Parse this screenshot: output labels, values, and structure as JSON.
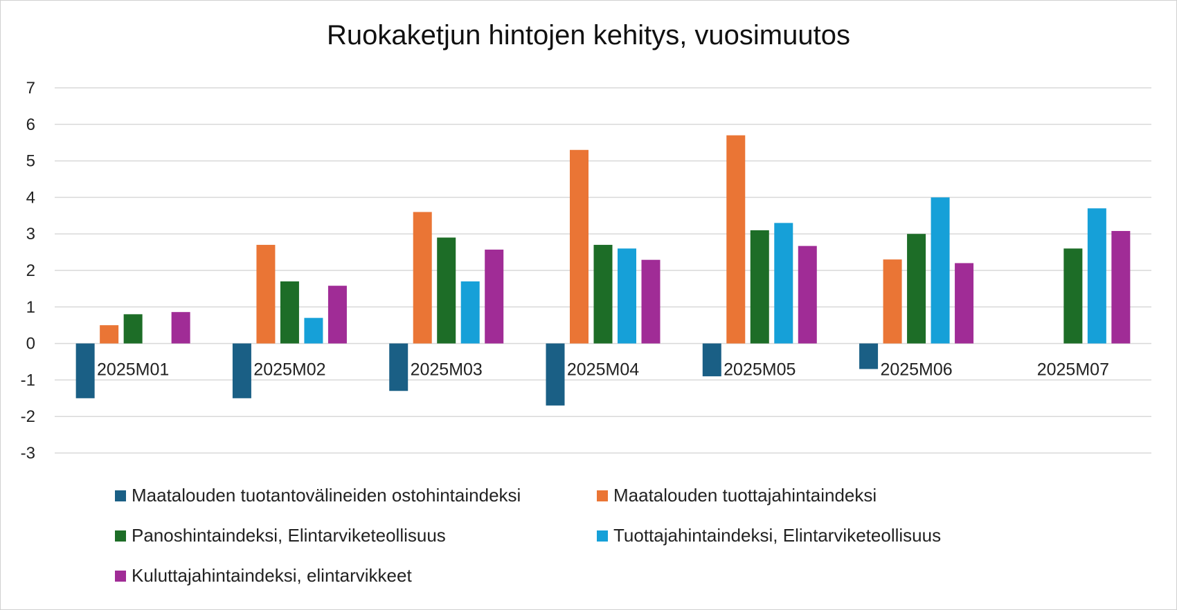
{
  "chart_data": {
    "type": "bar",
    "title": "Ruokaketjun hintojen kehitys, vuosimuutos",
    "xlabel": "",
    "ylabel": "",
    "ylim": [
      -3,
      7
    ],
    "yticks": [
      7,
      6,
      5,
      4,
      3,
      2,
      1,
      0,
      -1,
      -2,
      -3
    ],
    "grid": true,
    "legend_position": "bottom",
    "categories": [
      "2025M01",
      "2025M02",
      "2025M03",
      "2025M04",
      "2025M05",
      "2025M06",
      "2025M07"
    ],
    "series": [
      {
        "name": "Maatalouden tuotantovälineiden ostohintaindeksi",
        "color": "#1a5f85",
        "values": [
          -1.5,
          -1.5,
          -1.3,
          -1.7,
          -0.9,
          -0.7,
          null
        ]
      },
      {
        "name": "Maatalouden tuottajahintaindeksi",
        "color": "#ea7535",
        "values": [
          0.5,
          2.7,
          3.6,
          5.3,
          5.7,
          2.3,
          null
        ]
      },
      {
        "name": "Panoshintaindeksi, Elintarviketeollisuus",
        "color": "#1d6d27",
        "values": [
          0.8,
          1.7,
          2.9,
          2.7,
          3.1,
          3.0,
          2.6
        ]
      },
      {
        "name": "Tuottajahintaindeksi, Elintarviketeollisuus",
        "color": "#16a0d8",
        "values": [
          null,
          0.7,
          1.7,
          2.6,
          3.3,
          4.0,
          3.7
        ]
      },
      {
        "name": "Kuluttajahintaindeksi, elintarvikkeet",
        "color": "#a02c96",
        "values": [
          0.86,
          1.58,
          2.57,
          2.29,
          2.67,
          2.2,
          3.08
        ]
      }
    ]
  }
}
